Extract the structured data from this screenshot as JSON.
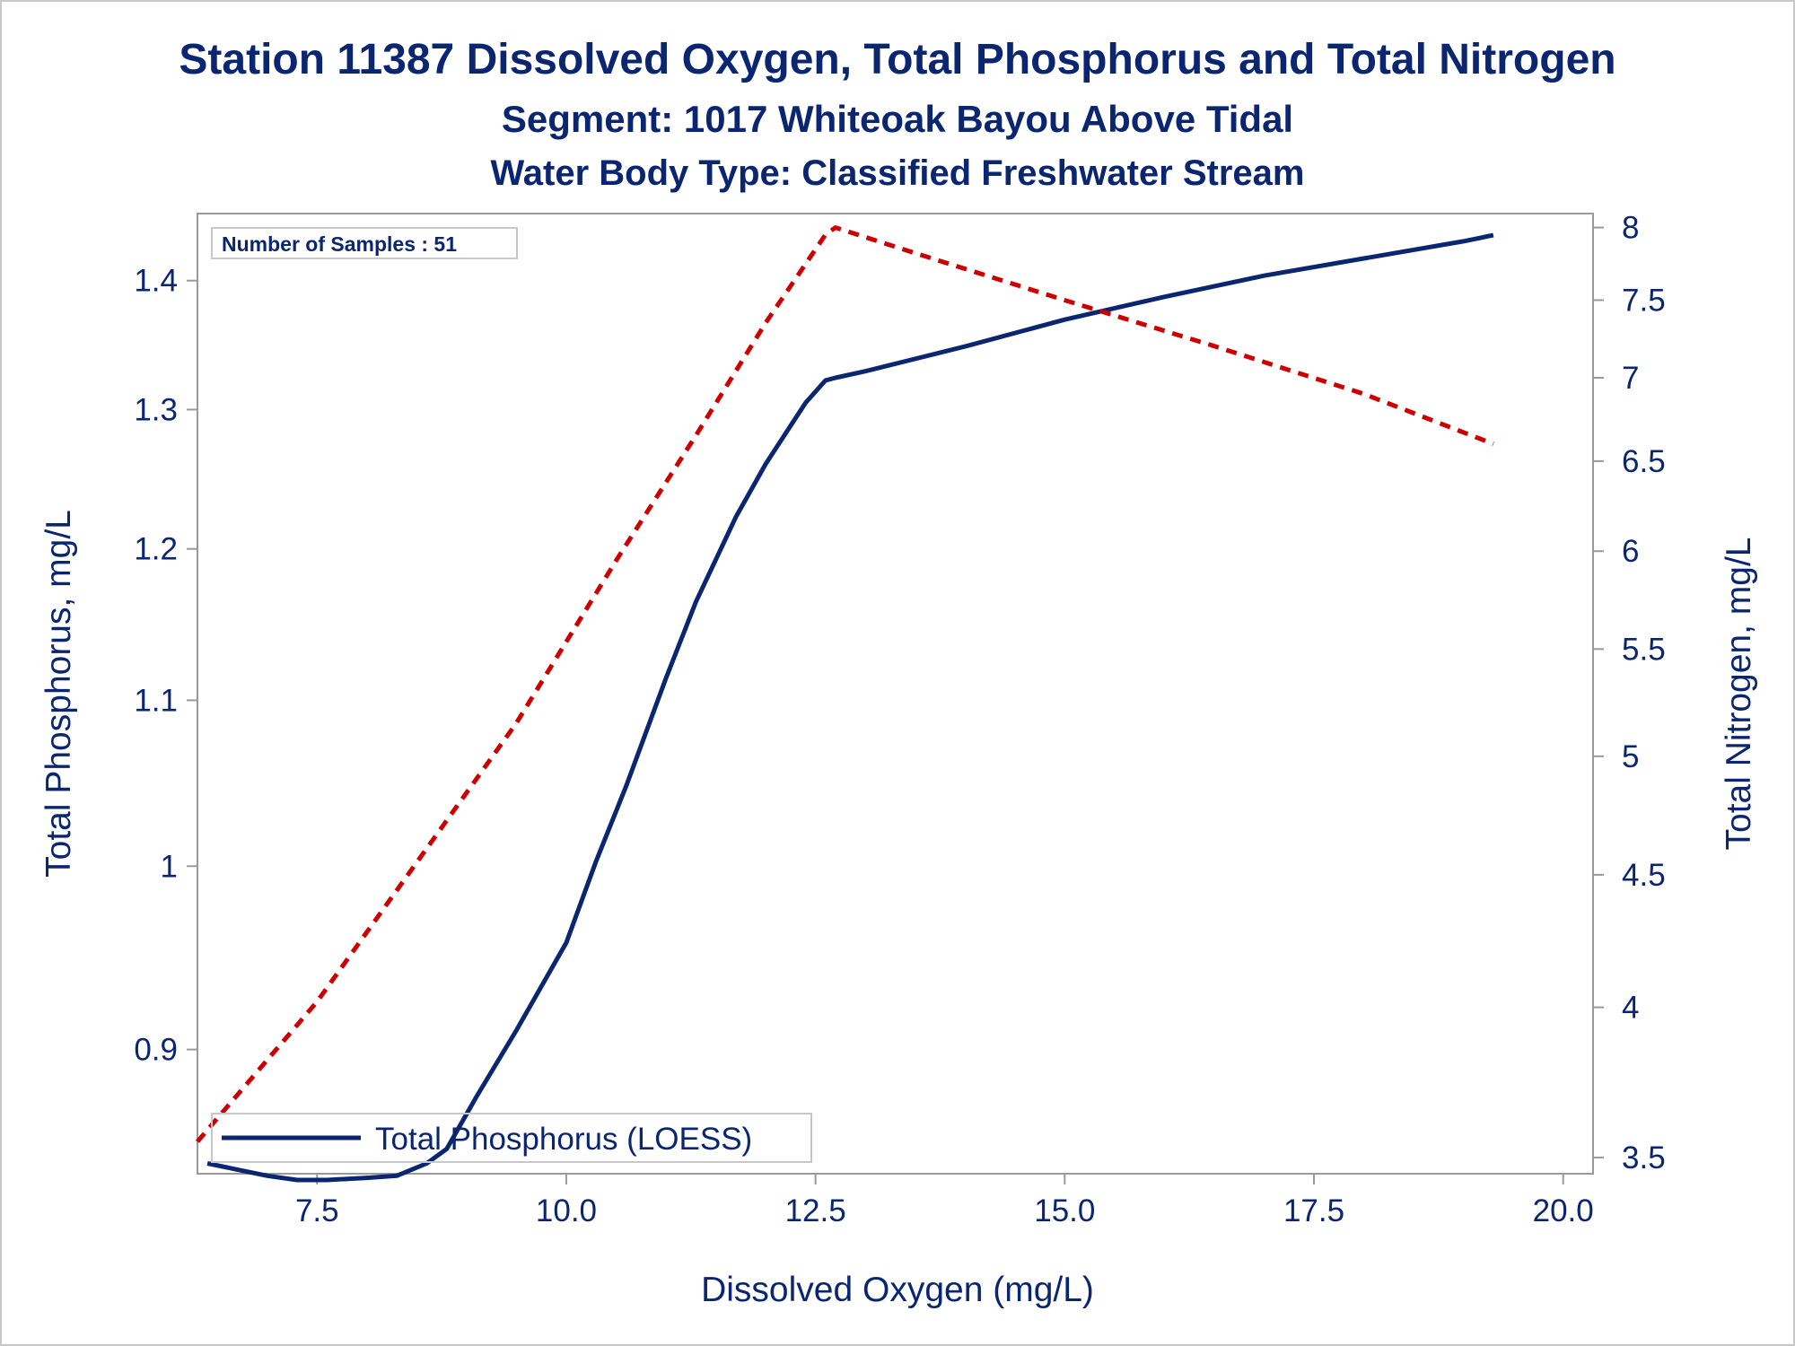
{
  "titles": {
    "line1": "Station 11387  Dissolved Oxygen, Total Phosphorus and Total Nitrogen",
    "line2": "Segment: 1017  Whiteoak Bayou Above Tidal",
    "line3": "Water Body Type: Classified Freshwater Stream"
  },
  "inset": {
    "samples_label": "Number of Samples : 51"
  },
  "legend": {
    "phosphorus_label": "Total Phosphorus (LOESS)"
  },
  "colors": {
    "phosphorus": "#0b2671",
    "nitrogen": "#cc0000",
    "text": "#0b2671",
    "frame": "#9a9a9a"
  },
  "chart_data": {
    "type": "line",
    "xlabel": "Dissolved Oxygen (mg/L)",
    "ylabel": "Total Phosphorus, mg/L",
    "y2label": "Total Nitrogen, mg/L",
    "xlim": [
      6.3,
      20.3
    ],
    "ylim": [
      0.838,
      1.455
    ],
    "y2lim": [
      3.45,
      8.1
    ],
    "y_scale": "log",
    "y2_scale": "log",
    "x_ticks": [
      "7.5",
      "10.0",
      "12.5",
      "15.0",
      "17.5",
      "20.0"
    ],
    "y_ticks": [
      "0.9",
      "1",
      "1.1",
      "1.2",
      "1.3",
      "1.4"
    ],
    "y2_ticks": [
      "3.5",
      "4",
      "4.5",
      "5",
      "5.5",
      "6",
      "6.5",
      "7",
      "7.5",
      "8"
    ],
    "legend_position": "bottom-left",
    "series": [
      {
        "name": "Total Phosphorus (LOESS)",
        "axis": "left",
        "style": "solid",
        "x": [
          6.4,
          6.7,
          7.0,
          7.3,
          7.6,
          8.0,
          8.3,
          8.6,
          8.8,
          9.1,
          9.5,
          10.0,
          10.3,
          10.6,
          11.0,
          11.3,
          11.7,
          12.0,
          12.4,
          12.6,
          12.7,
          13.0,
          14.0,
          15.0,
          16.0,
          17.0,
          18.0,
          19.0,
          19.3
        ],
        "values": [
          0.843,
          0.84,
          0.837,
          0.835,
          0.835,
          0.836,
          0.837,
          0.843,
          0.85,
          0.876,
          0.91,
          0.957,
          1.003,
          1.047,
          1.114,
          1.164,
          1.222,
          1.26,
          1.305,
          1.322,
          1.324,
          1.329,
          1.348,
          1.369,
          1.387,
          1.404,
          1.418,
          1.432,
          1.437
        ]
      },
      {
        "name": "",
        "axis": "right",
        "style": "dashed",
        "x": [
          6.3,
          7.5,
          8.5,
          9.5,
          10.5,
          11.3,
          12.0,
          12.6,
          12.7,
          13.5,
          15.0,
          16.5,
          18.0,
          19.3
        ],
        "values": [
          3.55,
          4.02,
          4.55,
          5.15,
          5.95,
          6.65,
          7.35,
          7.95,
          8.0,
          7.82,
          7.5,
          7.2,
          6.9,
          6.6
        ]
      }
    ]
  }
}
